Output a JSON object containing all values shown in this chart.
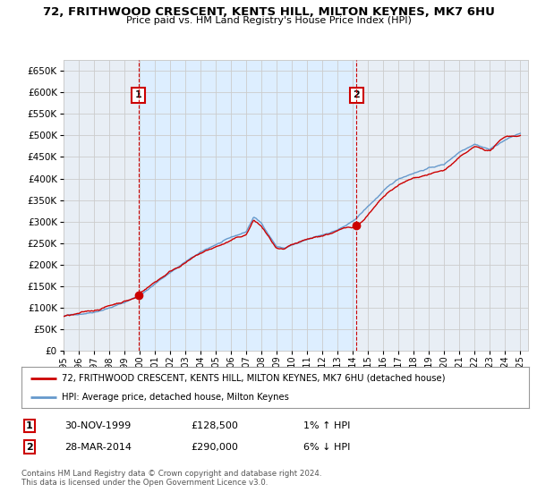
{
  "title": "72, FRITHWOOD CRESCENT, KENTS HILL, MILTON KEYNES, MK7 6HU",
  "subtitle": "Price paid vs. HM Land Registry's House Price Index (HPI)",
  "ylim": [
    0,
    675000
  ],
  "yticks": [
    0,
    50000,
    100000,
    150000,
    200000,
    250000,
    300000,
    350000,
    400000,
    450000,
    500000,
    550000,
    600000,
    650000
  ],
  "ytick_labels": [
    "£0",
    "£50K",
    "£100K",
    "£150K",
    "£200K",
    "£250K",
    "£300K",
    "£350K",
    "£400K",
    "£450K",
    "£500K",
    "£550K",
    "£600K",
    "£650K"
  ],
  "xlim_start": 1995,
  "xlim_end": 2025.5,
  "sale1_x": 1999.92,
  "sale1_y": 128500,
  "sale2_x": 2014.25,
  "sale2_y": 290000,
  "sale1_date": "30-NOV-1999",
  "sale1_price": "£128,500",
  "sale1_hpi": "1% ↑ HPI",
  "sale2_date": "28-MAR-2014",
  "sale2_price": "£290,000",
  "sale2_hpi": "6% ↓ HPI",
  "legend1": "72, FRITHWOOD CRESCENT, KENTS HILL, MILTON KEYNES, MK7 6HU (detached house)",
  "legend2": "HPI: Average price, detached house, Milton Keynes",
  "footer_line1": "Contains HM Land Registry data © Crown copyright and database right 2024.",
  "footer_line2": "This data is licensed under the Open Government Licence v3.0.",
  "red": "#cc0000",
  "blue": "#6699cc",
  "shade_color": "#ddeeff",
  "bg": "#e8eef5",
  "grid_color": "#cccccc",
  "hpi_knots_t": [
    1995,
    1996,
    1997,
    1998,
    1999,
    2000,
    2001,
    2002,
    2003,
    2004,
    2005,
    2006,
    2007,
    2007.5,
    2008,
    2009,
    2009.5,
    2010,
    2011,
    2012,
    2013,
    2014,
    2015,
    2016,
    2017,
    2018,
    2019,
    2020,
    2021,
    2022,
    2023,
    2024,
    2025
  ],
  "hpi_knots_v": [
    80000,
    85000,
    92000,
    103000,
    115000,
    132000,
    158000,
    185000,
    210000,
    230000,
    248000,
    262000,
    275000,
    310000,
    295000,
    242000,
    238000,
    245000,
    255000,
    265000,
    278000,
    295000,
    330000,
    365000,
    392000,
    408000,
    420000,
    428000,
    458000,
    480000,
    468000,
    490000,
    505000
  ],
  "prop_knots_t": [
    1995,
    1996,
    1997,
    1998,
    1999,
    1999.92,
    2000,
    2001,
    2002,
    2003,
    2004,
    2005,
    2006,
    2007,
    2007.5,
    2008,
    2009,
    2009.5,
    2010,
    2011,
    2012,
    2013,
    2014,
    2014.25,
    2015,
    2016,
    2017,
    2018,
    2019,
    2020,
    2021,
    2022,
    2023,
    2024,
    2025
  ],
  "prop_knots_v": [
    80000,
    85000,
    92000,
    105000,
    118000,
    128500,
    138000,
    165000,
    192000,
    215000,
    235000,
    250000,
    265000,
    278000,
    312000,
    298000,
    245000,
    240000,
    248000,
    258000,
    268000,
    280000,
    290000,
    290000,
    320000,
    358000,
    385000,
    400000,
    412000,
    420000,
    448000,
    470000,
    462000,
    495000,
    500000
  ]
}
